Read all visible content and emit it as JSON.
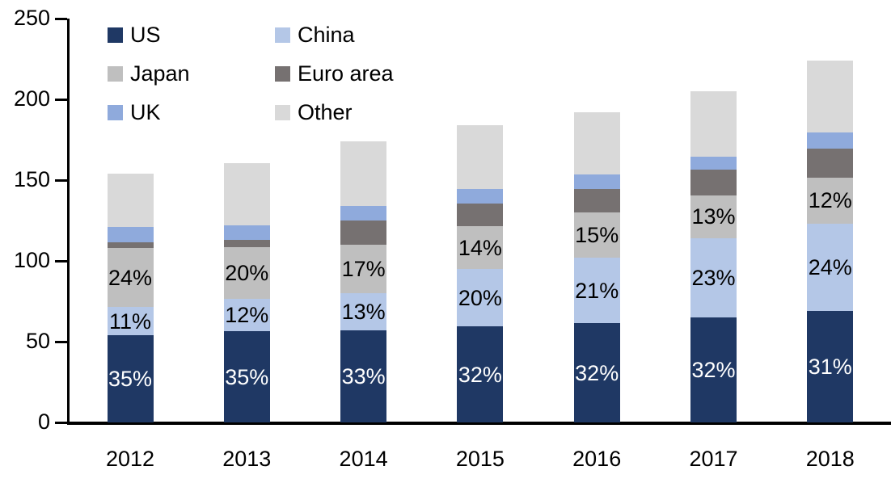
{
  "chart_data": {
    "type": "bar",
    "stacked": true,
    "title": "",
    "xlabel": "",
    "ylabel": "",
    "categories": [
      "2012",
      "2013",
      "2014",
      "2015",
      "2016",
      "2017",
      "2018"
    ],
    "series": [
      {
        "name": "US",
        "color": "#1F3864",
        "values": [
          54,
          56.5,
          57,
          59.5,
          61.5,
          65,
          69
        ],
        "labels": [
          "35%",
          "35%",
          "33%",
          "32%",
          "32%",
          "32%",
          "31%"
        ],
        "label_color": "#FFFFFF"
      },
      {
        "name": "China",
        "color": "#B4C7E7",
        "values": [
          17.5,
          20,
          23.2,
          35.5,
          40.5,
          49,
          54.2
        ],
        "labels": [
          "11%",
          "12%",
          "13%",
          "20%",
          "21%",
          "23%",
          "24%"
        ],
        "label_color": "#000000"
      },
      {
        "name": "Japan",
        "color": "#BFBFBF",
        "values": [
          36.3,
          32,
          29.7,
          26.5,
          28,
          26.7,
          28.4
        ],
        "labels": [
          "24%",
          "20%",
          "17%",
          "14%",
          "15%",
          "13%",
          "12%"
        ],
        "label_color": "#000000"
      },
      {
        "name": "Euro area",
        "color": "#767171",
        "values": [
          3.5,
          4.7,
          15,
          13.8,
          14.5,
          15.8,
          18
        ],
        "labels": [
          "",
          "",
          "",
          "",
          "",
          "",
          ""
        ],
        "label_color": "#000000"
      },
      {
        "name": "UK",
        "color": "#8FAADC",
        "values": [
          9.5,
          9,
          9.2,
          9.4,
          9,
          8,
          10
        ],
        "labels": [
          "",
          "",
          "",
          "",
          "",
          "",
          ""
        ],
        "label_color": "#000000"
      },
      {
        "name": "Other",
        "color": "#D9D9D9",
        "values": [
          33.3,
          38.5,
          40,
          39.5,
          38.5,
          40.6,
          44.5
        ],
        "labels": [
          "",
          "",
          "",
          "",
          "",
          "",
          ""
        ],
        "label_color": "#000000"
      }
    ],
    "stack_totals_approx": [
      154,
      161,
      174,
      184,
      192,
      205,
      224
    ],
    "ylim": [
      0,
      250
    ],
    "yticks": [
      0,
      50,
      100,
      150,
      200,
      250
    ],
    "grid": false,
    "legend_position": "top-left",
    "legend_order": [
      "US",
      "China",
      "Japan",
      "Euro area",
      "UK",
      "Other"
    ],
    "axis_color": "#000000",
    "background_color": "#FFFFFF"
  }
}
